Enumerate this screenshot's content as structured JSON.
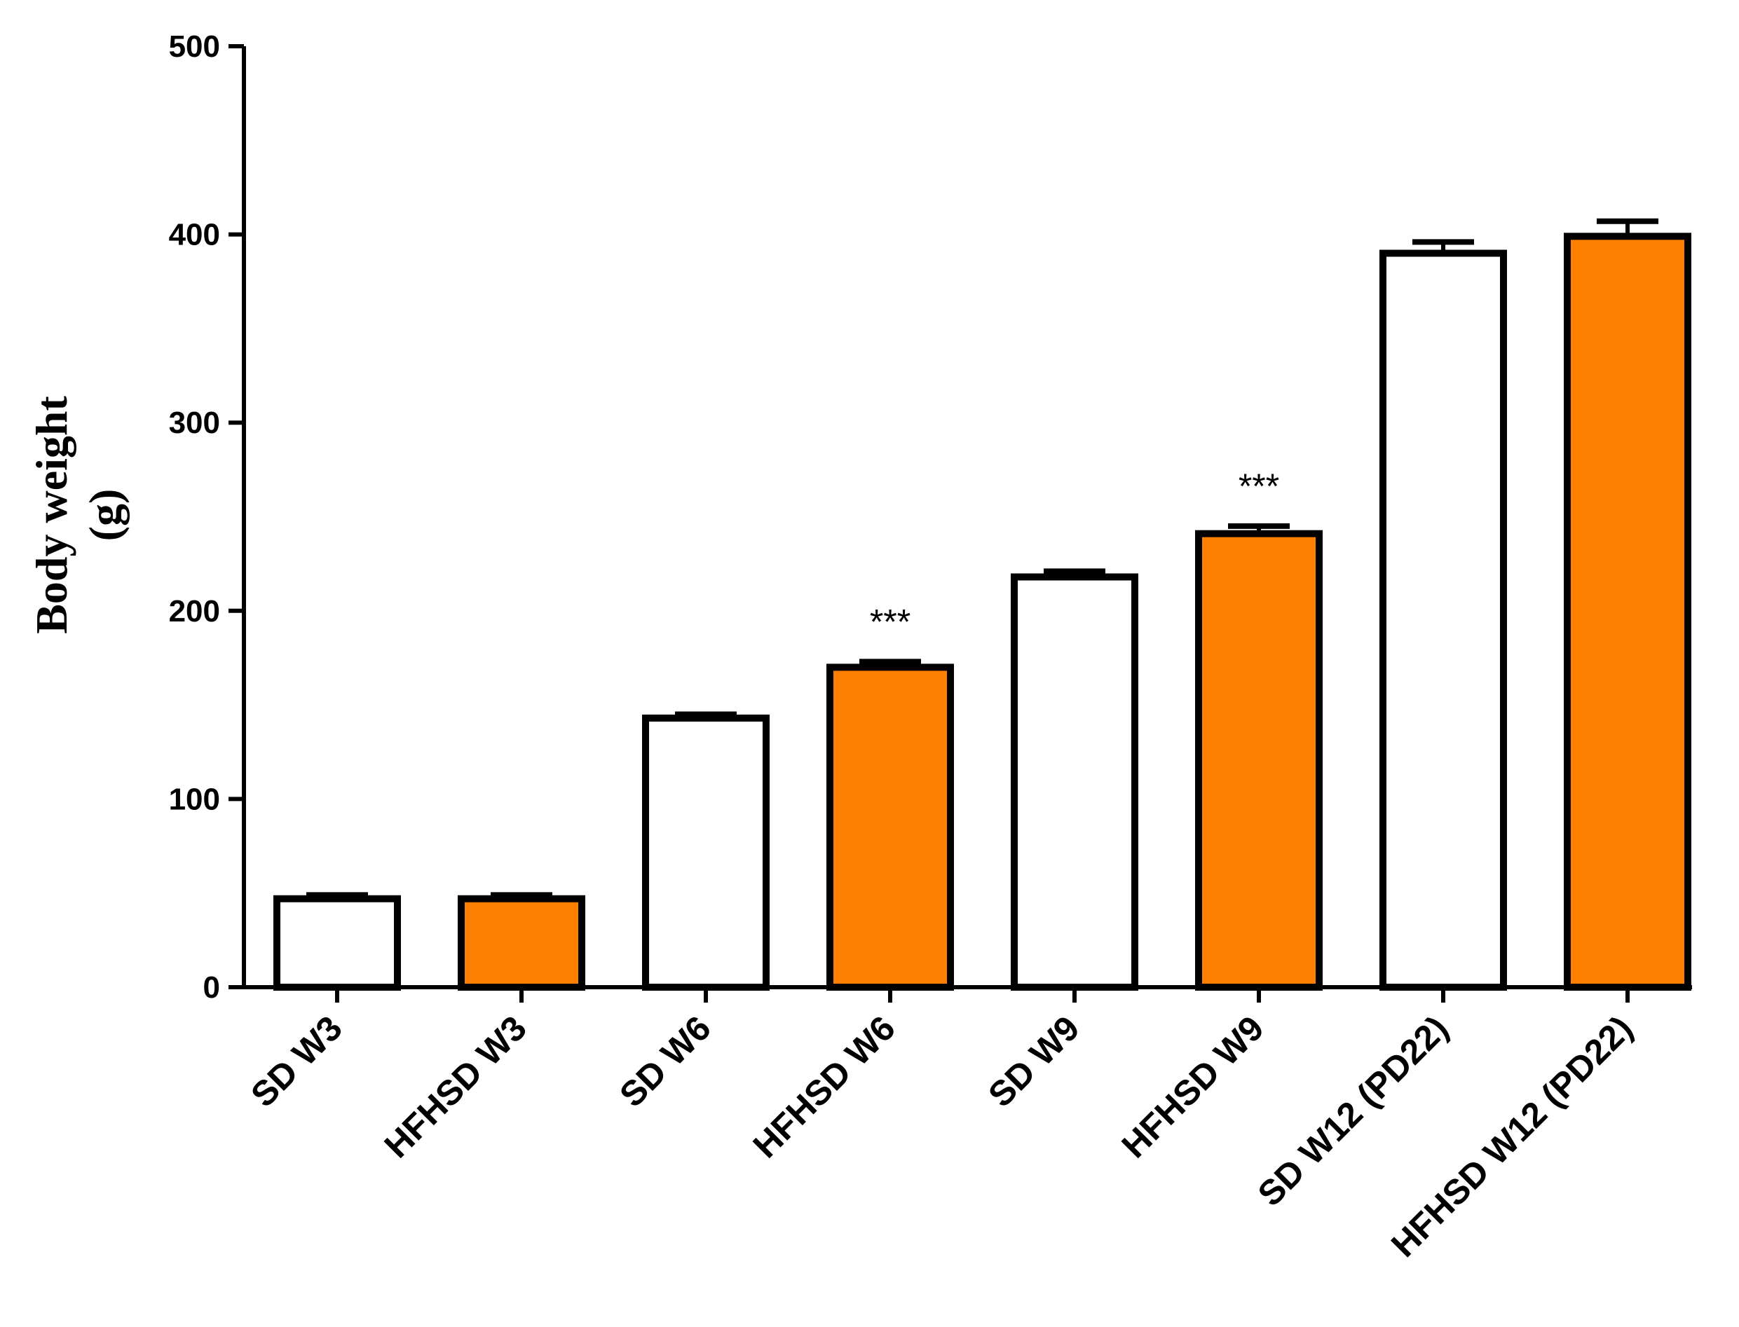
{
  "chart_data": {
    "type": "bar",
    "title": "",
    "xlabel": "",
    "ylabel_lines": [
      "Body weight",
      "(g)"
    ],
    "ylim": [
      0,
      500
    ],
    "yticks": [
      0,
      100,
      200,
      300,
      400,
      500
    ],
    "grid": false,
    "categories": [
      "SD W3",
      "HFHSD W3",
      "SD  W6",
      "HFHSD W6",
      "SD W9",
      "HFHSD W9",
      "SD W12 (PD22)",
      "HFHSD W12 (PD22)"
    ],
    "values": [
      47,
      47,
      143,
      170,
      218,
      241,
      390,
      399
    ],
    "errors": [
      2,
      2,
      2,
      3,
      3,
      4,
      6,
      8
    ],
    "fills": [
      "#ffffff",
      "#ff8000",
      "#ffffff",
      "#ff8000",
      "#ffffff",
      "#ff8000",
      "#ffffff",
      "#ff8000"
    ],
    "annotations": [
      "",
      "",
      "",
      "***",
      "",
      "***",
      "",
      ""
    ]
  }
}
